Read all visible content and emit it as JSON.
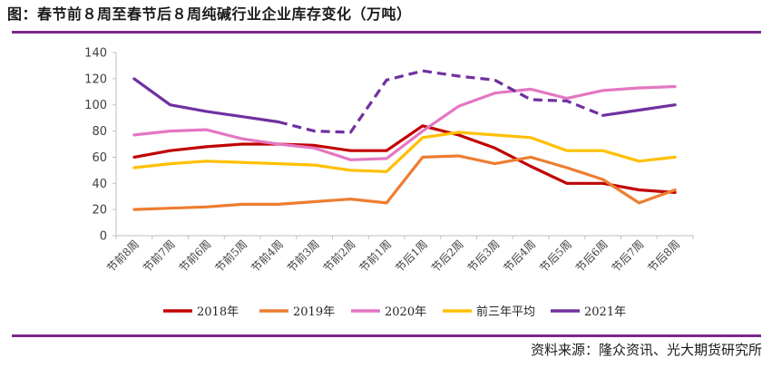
{
  "header": {
    "title": "图：春节前８周至春节后８周纯碱行业企业库存变化（万吨）"
  },
  "footer": {
    "source": "资料来源：隆众资讯、光大期货研究所"
  },
  "colors": {
    "accent_rule": "#7b2a8e"
  },
  "chart_data": {
    "type": "line",
    "title": "图：春节前８周至春节后８周纯碱行业企业库存变化（万吨）",
    "xlabel": "",
    "ylabel": "",
    "ylim": [
      0,
      140
    ],
    "yticks": [
      0,
      20,
      40,
      60,
      80,
      100,
      120,
      140
    ],
    "grid": false,
    "legend_position": "bottom",
    "categories": [
      "节前8周",
      "节前7周",
      "节前6周",
      "节前5周",
      "节前4周",
      "节前3周",
      "节前2周",
      "节前1周",
      "节后1周",
      "节后2周",
      "节后3周",
      "节后4周",
      "节后5周",
      "节后6周",
      "节后7周",
      "节后8周"
    ],
    "series": [
      {
        "name": "2018年",
        "color": "#c00000",
        "dash": "solid",
        "values": [
          60,
          65,
          68,
          70,
          70,
          69,
          65,
          65,
          84,
          77,
          67,
          53,
          40,
          40,
          35,
          33
        ]
      },
      {
        "name": "2019年",
        "color": "#ed7d31",
        "dash": "solid",
        "values": [
          20,
          21,
          22,
          24,
          24,
          26,
          28,
          25,
          60,
          61,
          55,
          60,
          52,
          43,
          25,
          35
        ]
      },
      {
        "name": "2020年",
        "color": "#e377c2",
        "dash": "solid",
        "values": [
          77,
          80,
          81,
          74,
          70,
          67,
          58,
          59,
          80,
          99,
          109,
          112,
          105,
          111,
          113,
          114
        ]
      },
      {
        "name": "前三年平均",
        "color": "#ffc000",
        "dash": "solid",
        "values": [
          52,
          55,
          57,
          56,
          55,
          54,
          50,
          49,
          75,
          79,
          77,
          75,
          65,
          65,
          57,
          60
        ]
      },
      {
        "name": "2021年",
        "color": "#7030a0",
        "dash": "mixed",
        "dashed_from_index": 4,
        "dashed_to_index": 13,
        "values": [
          120,
          100,
          95,
          91,
          87,
          80,
          79,
          119,
          126,
          122,
          119,
          104,
          103,
          92,
          96,
          100
        ]
      }
    ]
  }
}
